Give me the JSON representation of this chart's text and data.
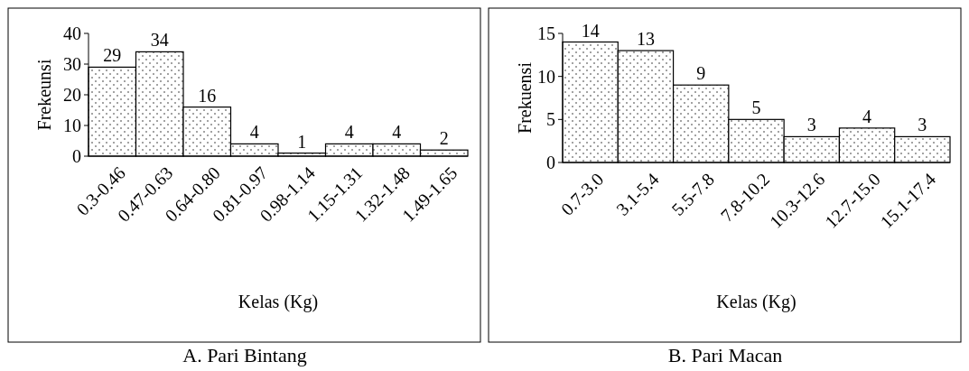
{
  "chart_data": [
    {
      "type": "bar",
      "title": "A. Pari Bintang",
      "xlabel": "Kelas (Kg)",
      "ylabel": "Frekeunsi",
      "categories": [
        "0.3-0.46",
        "0.47-0.63",
        "0.64-0.80",
        "0.81-0.97",
        "0.98-1.14",
        "1.15-1.31",
        "1.32-1.48",
        "1.49-1.65"
      ],
      "values": [
        29,
        34,
        16,
        4,
        1,
        4,
        4,
        2
      ],
      "color": "#ffffff",
      "ylim": [
        0,
        40
      ],
      "yticks": [
        0,
        10,
        20,
        30,
        40
      ],
      "data_labels": true
    },
    {
      "type": "bar",
      "title": "B. Pari Macan",
      "xlabel": "Kelas (Kg)",
      "ylabel": "Frekuensi",
      "categories": [
        "0.7-3.0",
        "3.1-5.4",
        "5.5-7.8",
        "7.8-10.2",
        "10.3-12.6",
        "12.7-15.0",
        "15.1-17.4"
      ],
      "values": [
        14,
        13,
        9,
        5,
        3,
        4,
        3
      ],
      "color": "#ffffff",
      "ylim": [
        0,
        15
      ],
      "yticks": [
        0,
        5,
        10,
        15
      ],
      "data_labels": true
    }
  ]
}
